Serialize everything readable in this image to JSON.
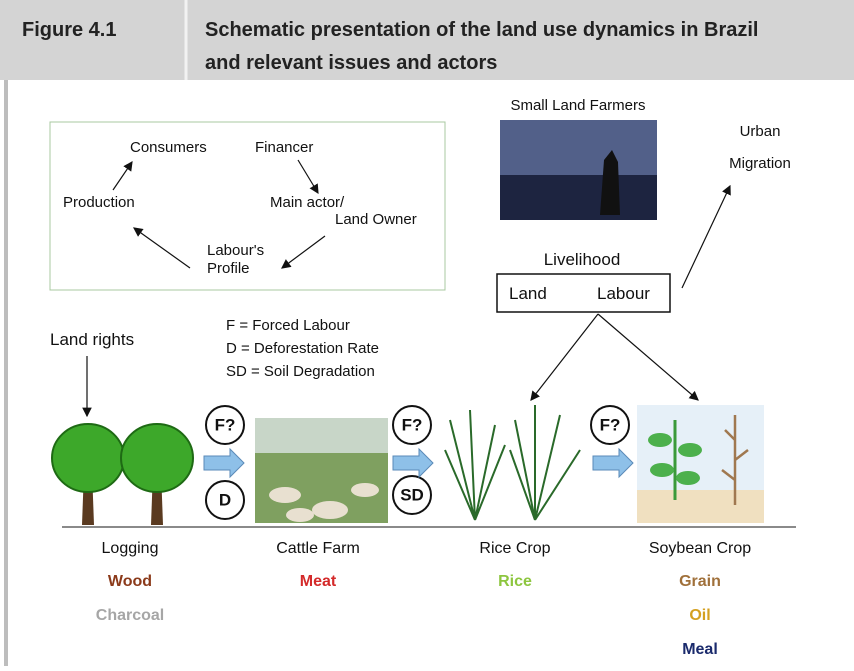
{
  "header": {
    "label": "Figure 4.1",
    "title_lines": [
      "Schematic presentation of the land use dynamics in Brazil",
      "and relevant issues and actors"
    ]
  },
  "cycle": {
    "consumers": "Consumers",
    "financer": "Financer",
    "production": "Production",
    "main_actor": [
      "Main actor/",
      "Land Owner"
    ],
    "labour_profile": [
      "Labour's",
      "Profile"
    ]
  },
  "small_farmers": {
    "title": "Small Land Farmers",
    "urban_migration": [
      "Urban",
      "Migration"
    ],
    "livelihood": "Livelihood",
    "land": "Land",
    "labour": "Labour"
  },
  "legend": [
    "F = Forced Labour",
    "D = Deforestation Rate",
    "SD = Soil Degradation"
  ],
  "land_rights": "Land rights",
  "badges": [
    "F?",
    "D",
    "F?",
    "SD",
    "F?"
  ],
  "stages": [
    {
      "name": "Logging",
      "products": [
        {
          "text": "Wood",
          "color": "#8b3a1a"
        },
        {
          "text": "Charcoal",
          "color": "#a6a6a6"
        }
      ]
    },
    {
      "name": "Cattle Farm",
      "products": [
        {
          "text": "Meat",
          "color": "#d42a2a"
        }
      ]
    },
    {
      "name": "Rice Crop",
      "products": [
        {
          "text": "Rice",
          "color": "#8dc63f"
        }
      ]
    },
    {
      "name": "Soybean Crop",
      "products": [
        {
          "text": "Grain",
          "color": "#a0703a"
        },
        {
          "text": "Oil",
          "color": "#d4a020"
        },
        {
          "text": "Meal",
          "color": "#1a2a6c"
        }
      ]
    }
  ]
}
